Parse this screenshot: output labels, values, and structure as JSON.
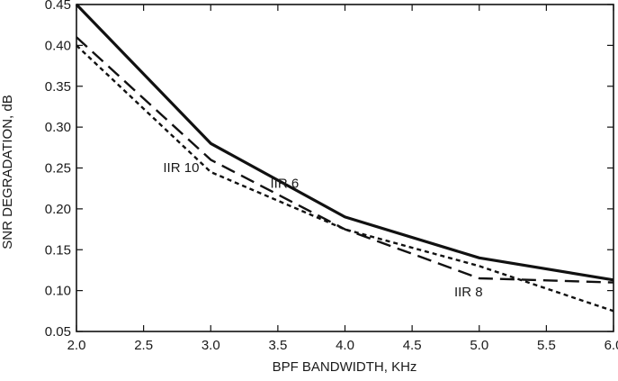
{
  "chart_data": {
    "type": "line",
    "title": "",
    "xlabel": "BPF BANDWIDTH, KHz",
    "ylabel": "SNR DEGRADATION, dB",
    "xlim": [
      2.0,
      6.0
    ],
    "ylim": [
      0.05,
      0.45
    ],
    "xticks": [
      "2.0",
      "2.5",
      "3.0",
      "3.5",
      "4.0",
      "4.5",
      "5.0",
      "5.5",
      "6.0"
    ],
    "yticks": [
      "0.05",
      "0.10",
      "0.15",
      "0.20",
      "0.25",
      "0.30",
      "0.35",
      "0.40",
      "0.45"
    ],
    "grid": false,
    "legend": "none",
    "series": [
      {
        "name": "IIR 6",
        "style": "solid",
        "color": "#111111",
        "x": [
          2.0,
          3.0,
          4.0,
          5.0,
          6.0
        ],
        "y": [
          0.45,
          0.28,
          0.19,
          0.14,
          0.113
        ]
      },
      {
        "name": "IIR 8",
        "style": "dashed",
        "color": "#111111",
        "x": [
          2.0,
          3.0,
          4.0,
          5.0,
          6.0
        ],
        "y": [
          0.41,
          0.26,
          0.175,
          0.115,
          0.11
        ]
      },
      {
        "name": "IIR 10",
        "style": "dotted",
        "color": "#111111",
        "x": [
          2.0,
          3.0,
          4.0,
          5.0,
          6.0
        ],
        "y": [
          0.4,
          0.245,
          0.175,
          0.13,
          0.075
        ]
      }
    ],
    "annotations": [
      {
        "text": "IIR 10",
        "series": "IIR 10"
      },
      {
        "text": "IIR 6",
        "series": "IIR 6"
      },
      {
        "text": "IIR 8",
        "series": "IIR 8"
      }
    ]
  }
}
